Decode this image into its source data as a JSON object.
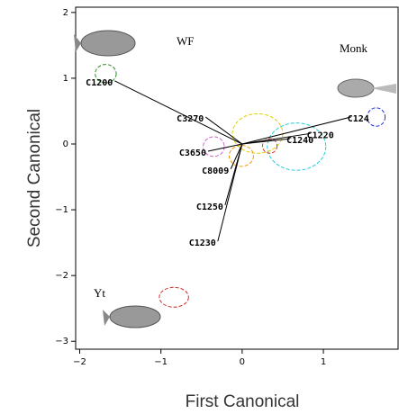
{
  "chart_data": {
    "type": "biplot",
    "xlabel": "First Canonical",
    "ylabel": "Second Canonical",
    "xlim": [
      -2.05,
      1.92
    ],
    "ylim": [
      -3.12,
      2.08
    ],
    "xticks": [
      {
        "value": -2,
        "label": "−2"
      },
      {
        "value": -1,
        "label": "−1"
      },
      0,
      1
    ],
    "yticks": [
      {
        "value": -3,
        "label": "−3"
      },
      {
        "value": -2,
        "label": "−2"
      },
      {
        "value": -1,
        "label": "−1"
      },
      0,
      1,
      2
    ],
    "vectors": [
      {
        "name": "C1200",
        "x": -1.57,
        "y": 0.96
      },
      {
        "name": "C3270",
        "x": -0.45,
        "y": 0.41
      },
      {
        "name": "C3650",
        "x": -0.42,
        "y": -0.11
      },
      {
        "name": "C8009",
        "x": -0.14,
        "y": -0.38
      },
      {
        "name": "C1250",
        "x": -0.21,
        "y": -0.93
      },
      {
        "name": "C1230",
        "x": -0.3,
        "y": -1.48
      },
      {
        "name": "C124",
        "x": 1.34,
        "y": 0.41
      },
      {
        "name": "C1220",
        "x": 0.84,
        "y": 0.16
      },
      {
        "name": "C1240",
        "x": 0.59,
        "y": 0.08
      }
    ],
    "groups": [
      {
        "x": -1.68,
        "y": 1.07,
        "rx": 0.13,
        "ry": 0.14,
        "color": "#2a8a2a"
      },
      {
        "x": 1.65,
        "y": 0.41,
        "rx": 0.11,
        "ry": 0.14,
        "color": "#2233dd"
      },
      {
        "x": -0.84,
        "y": -2.33,
        "rx": 0.18,
        "ry": 0.15,
        "color": "#cc2a2a"
      },
      {
        "x": 0.19,
        "y": 0.16,
        "rx": 0.31,
        "ry": 0.3,
        "color": "#e0d000"
      },
      {
        "x": 0.67,
        "y": -0.04,
        "rx": 0.36,
        "ry": 0.36,
        "color": "#22ccdd"
      },
      {
        "x": -0.35,
        "y": -0.04,
        "rx": 0.13,
        "ry": 0.15,
        "color": "#cc66cc"
      },
      {
        "x": -0.01,
        "y": -0.18,
        "rx": 0.15,
        "ry": 0.16,
        "color": "#ee9900"
      },
      {
        "x": 0.34,
        "y": -0.03,
        "rx": 0.09,
        "ry": 0.11,
        "color": "#dd3333"
      }
    ],
    "annotations": [
      "WF",
      "Monk",
      "Yt"
    ]
  }
}
